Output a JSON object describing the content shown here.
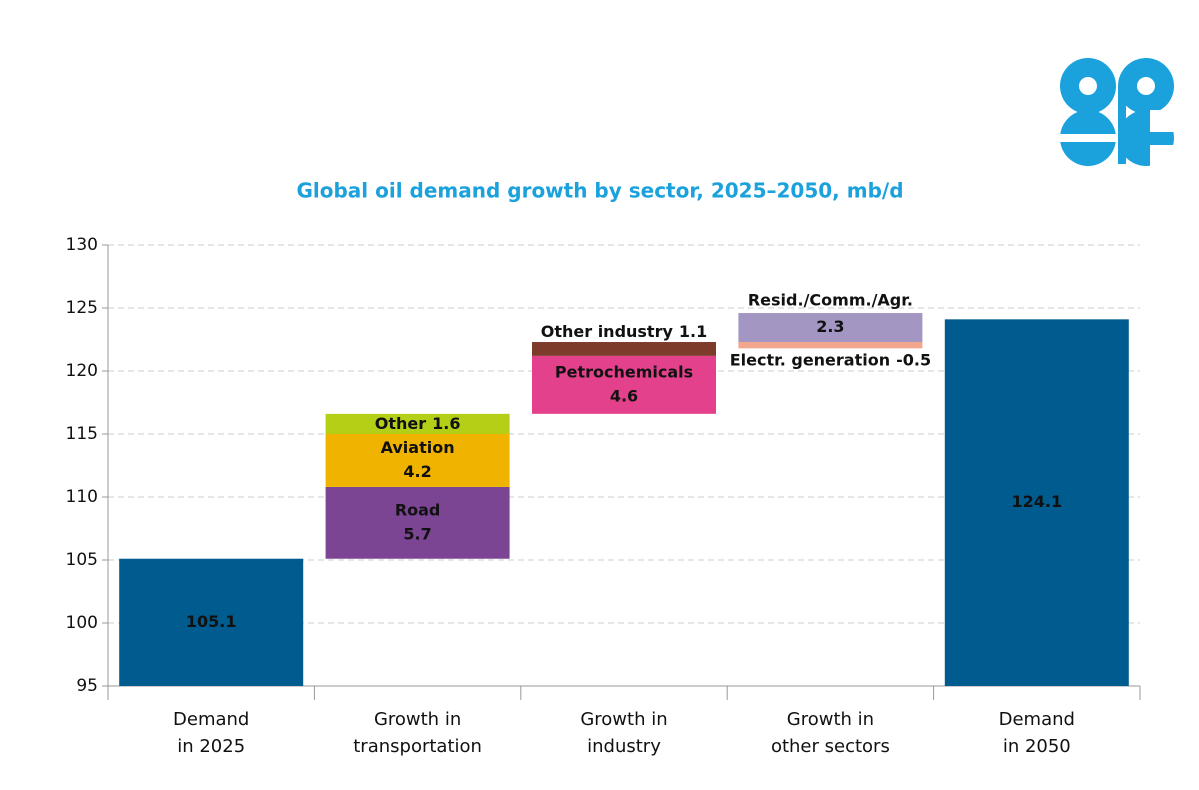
{
  "chart_data": {
    "type": "waterfall",
    "title": "Global oil demand growth by sector, 2025–2050, mb/d",
    "ylim": [
      95,
      130
    ],
    "yticks": [
      95,
      100,
      105,
      110,
      115,
      120,
      125,
      130
    ],
    "grid": true,
    "steps": [
      {
        "category": [
          "Demand",
          "in 2025"
        ],
        "total": 105.1,
        "color": "#005b8e"
      },
      {
        "category": [
          "Growth in",
          "transportation"
        ],
        "segments": [
          {
            "name": "Road",
            "value": 5.7,
            "color": "#7b4594"
          },
          {
            "name": "Aviation",
            "value": 4.2,
            "color": "#f0b400"
          },
          {
            "name": "Other",
            "value": 1.6,
            "color": "#b5cf17"
          }
        ]
      },
      {
        "category": [
          "Growth in",
          "industry"
        ],
        "segments": [
          {
            "name": "Petrochemicals",
            "value": 4.6,
            "color": "#e4418d"
          },
          {
            "name": "Other industry",
            "value": 1.1,
            "color": "#7d3b2b"
          }
        ]
      },
      {
        "category": [
          "Growth in",
          "other sectors"
        ],
        "segments": [
          {
            "name": "Electr. generation",
            "value": -0.5,
            "color": "#f2a68b"
          },
          {
            "name": "Resid./Comm./Agr.",
            "value": 2.3,
            "color": "#a396c2"
          }
        ]
      },
      {
        "category": [
          "Demand",
          "in 2050"
        ],
        "total": 124.1,
        "color": "#005b8e"
      }
    ]
  }
}
